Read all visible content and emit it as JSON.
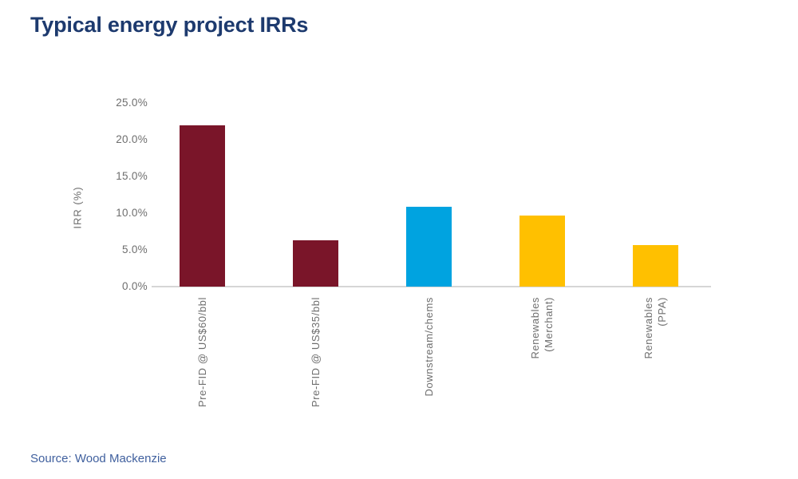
{
  "title": "Typical energy project IRRs",
  "source": "Source: Wood Mackenzie",
  "colors": {
    "title": "#1D3A6E",
    "source": "#40609E",
    "axis_text": "#6E6E6E",
    "axis_line": "#D6D6D6"
  },
  "chart_data": {
    "type": "bar",
    "title": "Typical energy project IRRs",
    "xlabel": "",
    "ylabel": "IRR (%)",
    "ylim": [
      0,
      25
    ],
    "yticks": [
      0,
      5,
      10,
      15,
      20,
      25
    ],
    "ytick_labels": [
      "0.0%",
      "5.0%",
      "10.0%",
      "15.0%",
      "20.0%",
      "25.0%"
    ],
    "grid": false,
    "legend": false,
    "categories": [
      "Pre-FID @ US$60/bbl",
      "Pre-FID @ US$35/bbl",
      "Downstream/chems",
      "Renewables (Merchant)",
      "Renewables (PPA)"
    ],
    "category_label_lines": [
      [
        "Pre-FID @ US$60/bbl"
      ],
      [
        "Pre-FID @ US$35/bbl"
      ],
      [
        "Downstream/chems"
      ],
      [
        "Renewables",
        "(Merchant)"
      ],
      [
        "Renewables",
        "(PPA)"
      ]
    ],
    "values": [
      22.0,
      6.3,
      10.9,
      9.7,
      5.6
    ],
    "bar_colors": [
      "#7A1529",
      "#7A1529",
      "#00A3E0",
      "#FFC000",
      "#FFC000"
    ]
  }
}
